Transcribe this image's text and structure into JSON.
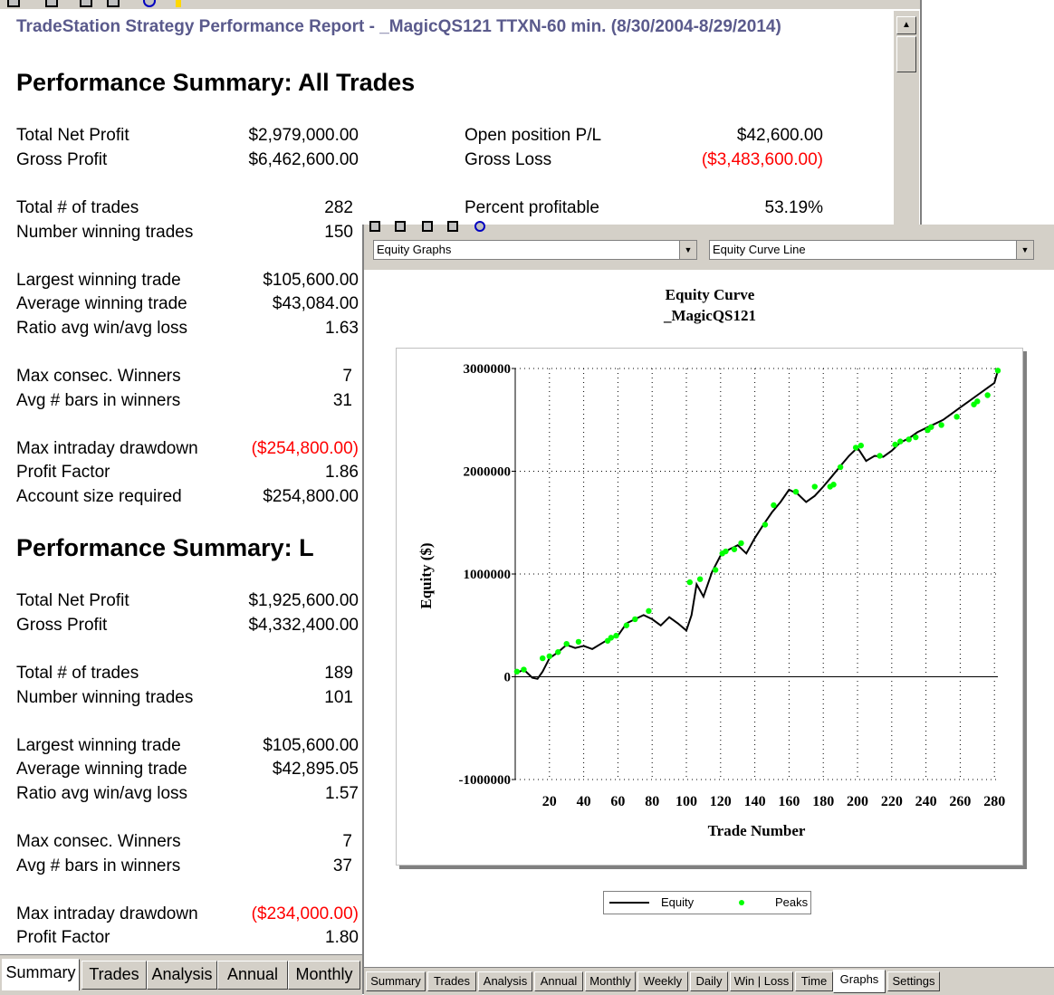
{
  "report": {
    "title_prefix": "TradeStation  Strategy Performance Report - _MagicQS121 ",
    "title_symbol": "TTXN-60 min. (8/30/2004-8/29/2014)",
    "heading_all": "Performance Summary:  All Trades",
    "heading_long": "Performance Summary:  L",
    "all": {
      "total_net_profit": {
        "label": "Total Net Profit",
        "value": "$2,979,000.00"
      },
      "gross_profit": {
        "label": "Gross Profit",
        "value": "$6,462,600.00"
      },
      "open_pl": {
        "label": "Open position P/L",
        "value": "$42,600.00"
      },
      "gross_loss": {
        "label": "Gross Loss",
        "value": "($3,483,600.00)"
      },
      "total_trades": {
        "label": "Total # of trades",
        "value": "282"
      },
      "percent_profitable": {
        "label": "Percent profitable",
        "value": "53.19%"
      },
      "winning_trades": {
        "label": "Number winning trades",
        "value": "150"
      },
      "largest_win": {
        "label": "Largest winning trade",
        "value": "$105,600.00"
      },
      "avg_win": {
        "label": "Average winning trade",
        "value": "$43,084.00"
      },
      "ratio": {
        "label": "Ratio avg win/avg loss",
        "value": "1.63"
      },
      "consec_winners": {
        "label": "Max consec. Winners",
        "value": "7"
      },
      "avg_bars_winners": {
        "label": "Avg # bars in winners",
        "value": "31"
      },
      "max_drawdown": {
        "label": "Max intraday drawdown",
        "value": "($254,800.00)"
      },
      "profit_factor": {
        "label": "Profit Factor",
        "value": "1.86"
      },
      "account_size": {
        "label": "Account size required",
        "value": "$254,800.00"
      }
    },
    "long": {
      "total_net_profit": {
        "label": "Total Net Profit",
        "value": "$1,925,600.00"
      },
      "gross_profit": {
        "label": "Gross Profit",
        "value": "$4,332,400.00"
      },
      "total_trades": {
        "label": "Total # of trades",
        "value": "189"
      },
      "winning_trades": {
        "label": "Number winning trades",
        "value": "101"
      },
      "largest_win": {
        "label": "Largest winning trade",
        "value": "$105,600.00"
      },
      "avg_win": {
        "label": "Average winning trade",
        "value": "$42,895.05"
      },
      "ratio": {
        "label": "Ratio avg win/avg loss",
        "value": "1.57"
      },
      "consec_winners": {
        "label": "Max consec. Winners",
        "value": "7"
      },
      "avg_bars_winners": {
        "label": "Avg # bars in winners",
        "value": "37"
      },
      "max_drawdown": {
        "label": "Max intraday drawdown",
        "value": "($234,000.00)"
      },
      "profit_factor": {
        "label": "Profit Factor",
        "value": "1.80"
      }
    },
    "tabs": [
      "Summary",
      "Trades",
      "Analysis",
      "Annual",
      "Monthly"
    ],
    "active_tab": "Summary"
  },
  "graph_window": {
    "graph_type_combo": "Equity Graphs",
    "graph_style_combo": "Equity Curve Line",
    "tabs": [
      "Summary",
      "Trades",
      "Analysis",
      "Annual",
      "Monthly",
      "Weekly",
      "Daily",
      "Win | Loss",
      "Time",
      "Graphs",
      "Settings"
    ],
    "active_tab": "Graphs",
    "legend_equity": "Equity",
    "legend_peaks": "Peaks"
  },
  "colors": {
    "negative": "#ff0000",
    "equity_line": "#000000",
    "peaks": "#00ff00",
    "title_blue": "#5a5a8c"
  },
  "chart_data": {
    "type": "line",
    "title": "Equity Curve",
    "subtitle": "_MagicQS121",
    "xlabel": "Trade Number",
    "ylabel": "Equity ($)",
    "xlim": [
      0,
      282
    ],
    "ylim": [
      -1000000,
      3000000
    ],
    "x_ticks": [
      20,
      40,
      60,
      80,
      100,
      120,
      140,
      160,
      180,
      200,
      220,
      240,
      260,
      280
    ],
    "y_ticks": [
      -1000000,
      0,
      1000000,
      2000000,
      3000000
    ],
    "y_tick_labels": [
      "-1000000",
      "0",
      "1000000",
      "2000000",
      "3000000"
    ],
    "grid": true,
    "legend_placement": "bottom",
    "series": [
      {
        "name": "Equity",
        "x": [
          0,
          5,
          10,
          13,
          16,
          20,
          25,
          30,
          35,
          40,
          45,
          50,
          55,
          60,
          65,
          70,
          75,
          80,
          85,
          90,
          95,
          100,
          103,
          106,
          110,
          115,
          120,
          125,
          130,
          135,
          140,
          145,
          150,
          155,
          160,
          165,
          170,
          175,
          180,
          185,
          190,
          195,
          200,
          205,
          210,
          215,
          220,
          225,
          230,
          235,
          240,
          245,
          250,
          255,
          260,
          265,
          270,
          275,
          280,
          282
        ],
        "y": [
          30000,
          70000,
          -10000,
          -20000,
          50000,
          180000,
          240000,
          310000,
          280000,
          300000,
          270000,
          320000,
          370000,
          400000,
          520000,
          560000,
          600000,
          560000,
          500000,
          580000,
          520000,
          450000,
          600000,
          900000,
          780000,
          1020000,
          1180000,
          1240000,
          1280000,
          1200000,
          1350000,
          1480000,
          1600000,
          1700000,
          1820000,
          1780000,
          1700000,
          1760000,
          1850000,
          1950000,
          2050000,
          2150000,
          2230000,
          2100000,
          2150000,
          2140000,
          2200000,
          2280000,
          2320000,
          2380000,
          2420000,
          2460000,
          2500000,
          2560000,
          2620000,
          2680000,
          2740000,
          2800000,
          2860000,
          2979000
        ]
      },
      {
        "name": "Peaks",
        "x": [
          1,
          5,
          16,
          20,
          25,
          30,
          37,
          54,
          56,
          59,
          65,
          70,
          78,
          102,
          108,
          117,
          121,
          123,
          128,
          132,
          146,
          151,
          164,
          175,
          184,
          186,
          190,
          199,
          202,
          213,
          222,
          225,
          230,
          234,
          241,
          243,
          249,
          258,
          268,
          270,
          276,
          282
        ],
        "y": [
          50000,
          70000,
          180000,
          200000,
          240000,
          320000,
          340000,
          350000,
          380000,
          400000,
          500000,
          560000,
          640000,
          920000,
          950000,
          1040000,
          1200000,
          1220000,
          1240000,
          1300000,
          1480000,
          1670000,
          1800000,
          1850000,
          1850000,
          1870000,
          2040000,
          2230000,
          2250000,
          2150000,
          2260000,
          2290000,
          2310000,
          2330000,
          2400000,
          2430000,
          2450000,
          2530000,
          2650000,
          2680000,
          2740000,
          2979000
        ]
      }
    ]
  }
}
